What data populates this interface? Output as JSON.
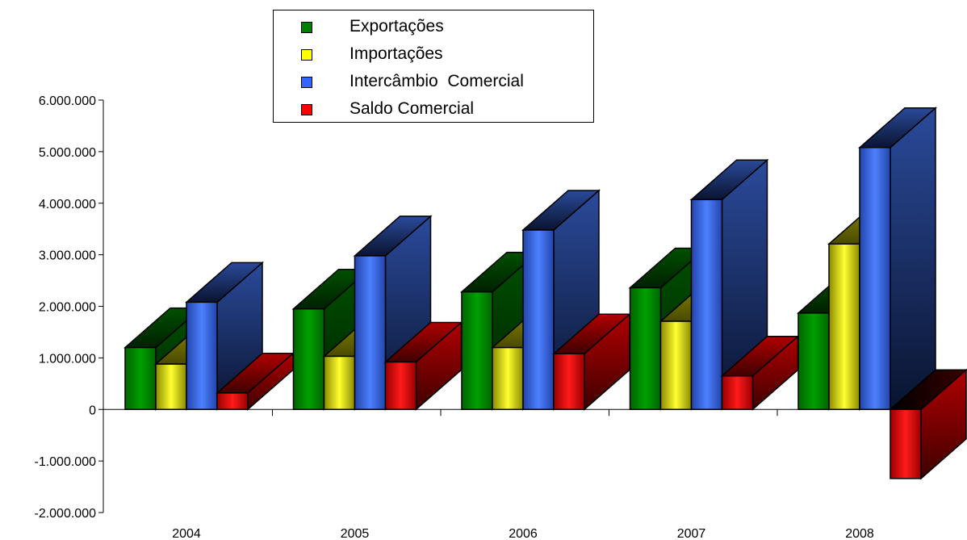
{
  "chart_data": {
    "type": "bar",
    "categories": [
      "2004",
      "2005",
      "2006",
      "2007",
      "2008"
    ],
    "series": [
      {
        "name": "Exportações",
        "color": "#008000",
        "values": [
          1200000,
          1950000,
          2280000,
          2360000,
          1870000
        ]
      },
      {
        "name": "Importações",
        "color": "#ffff00",
        "values": [
          880000,
          1030000,
          1200000,
          1710000,
          3210000
        ]
      },
      {
        "name": "Intercâmbio  Comercial",
        "color": "#3366ff",
        "values": [
          2080000,
          2980000,
          3480000,
          4070000,
          5080000
        ]
      },
      {
        "name": "Saldo Comercial",
        "color": "#ff0000",
        "values": [
          320000,
          920000,
          1080000,
          650000,
          -1340000
        ]
      }
    ],
    "ylim": [
      -2000000,
      6000000
    ],
    "yticks": [
      "6.000.000",
      "5.000.000",
      "4.000.000",
      "3.000.000",
      "2.000.000",
      "1.000.000",
      "0",
      "-1.000.000",
      "-2.000.000"
    ],
    "ytick_values": [
      6000000,
      5000000,
      4000000,
      3000000,
      2000000,
      1000000,
      0,
      -1000000,
      -2000000
    ],
    "legend_position": "top-center",
    "grid": false,
    "style": "3d"
  }
}
